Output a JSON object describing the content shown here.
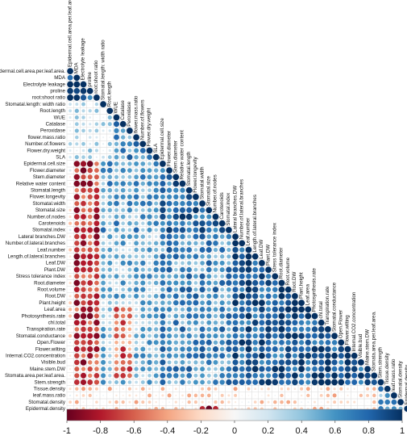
{
  "chart_data": {
    "type": "heatmap",
    "variant": "lower-triangle correlation plot, circle size and color encode correlation",
    "variables": [
      "Epidermal.cell.area.per.leaf.area.",
      "MDA",
      "Electrolyte leakage",
      "proline",
      "root:shoot ratio",
      "Stomatal.length: width ratio",
      "Root.length",
      "WUE",
      "Catalase",
      "Peroxidase",
      "flower.mass.ratio",
      "Number.of.flowers",
      "Flower.dry.weight",
      "SLA",
      "Epidermal.cell.size",
      "Flower.diameter",
      "Stem.diameter",
      "Relative water content",
      "Stomatal.length",
      "Flower.longevity",
      "Stomatal.width",
      "Stomatal.size",
      "Number.of.nodes",
      "Carotenoids",
      "Stomatal.index",
      "Lateral branches.DW",
      "Number.of.lateral.branches",
      "Leaf.number",
      "Length.of.lateral.branches",
      "Leaf.DW",
      "Plant.DW",
      "Stress tolerance index",
      "Root.diameter",
      "Root.volume",
      "Root.DW",
      "Plant.height",
      "Leaf.area",
      "Photosynthesis.rate",
      "chl.total",
      "Transpiration.rate",
      "Stomatal.conductance",
      "Open.Flower",
      "Flower.wilting",
      "Internal.CO2.concentration",
      "Visible.bud",
      "Maine.stem.DW",
      "Stomata.area.per.leaf.area.",
      "Stem.strength",
      "Tissue.density",
      "leaf.mass.ratio",
      "Stomatal.density",
      "Epidermal.density"
    ],
    "colorbar": {
      "min": -1,
      "max": 1,
      "ticks": [
        "-1",
        "-0.8",
        "-0.6",
        "-0.4",
        "-0.2",
        "0",
        "0.2",
        "0.4",
        "0.6",
        "0.8",
        "1"
      ],
      "colors": [
        "#67001f",
        "#b2182b",
        "#d6604d",
        "#f4a582",
        "#fddbc7",
        "#f7f7f7",
        "#d1e5f0",
        "#92c5de",
        "#4393c3",
        "#2166ac",
        "#053061"
      ]
    },
    "legend_position": "bottom",
    "grid": true,
    "diagonal_value": 1,
    "blocks": [
      {
        "rows": [
          1,
          4
        ],
        "cols": [
          0,
          3
        ],
        "r": 0.85
      },
      {
        "rows": [
          5,
          13
        ],
        "cols": [
          0,
          12
        ],
        "r": 0.22
      },
      {
        "rows": [
          8,
          13
        ],
        "cols": [
          7,
          12
        ],
        "r": 0.62
      },
      {
        "rows": [
          14,
          51
        ],
        "cols": [
          0,
          0
        ],
        "r": -0.08
      },
      {
        "rows": [
          14,
          51
        ],
        "cols": [
          1,
          4
        ],
        "r": -0.72
      },
      {
        "rows": [
          14,
          24
        ],
        "cols": [
          5,
          13
        ],
        "r": 0.55
      },
      {
        "rows": [
          14,
          24
        ],
        "cols": [
          14,
          23
        ],
        "r": 0.75
      },
      {
        "rows": [
          25,
          47
        ],
        "cols": [
          5,
          13
        ],
        "r": 0.45
      },
      {
        "rows": [
          25,
          47
        ],
        "cols": [
          14,
          24
        ],
        "r": 0.62
      },
      {
        "rows": [
          25,
          47
        ],
        "cols": [
          25,
          46
        ],
        "r": 0.85
      },
      {
        "rows": [
          36,
          46
        ],
        "cols": [
          7,
          9
        ],
        "r": -0.55
      },
      {
        "rows": [
          48,
          51
        ],
        "cols": [
          1,
          46
        ],
        "r": -0.18
      },
      {
        "rows": [
          48,
          51
        ],
        "cols": [
          47,
          50
        ],
        "r": 0.55
      },
      {
        "rows": [
          51,
          51
        ],
        "cols": [
          20,
          22
        ],
        "r": -0.95
      }
    ]
  }
}
